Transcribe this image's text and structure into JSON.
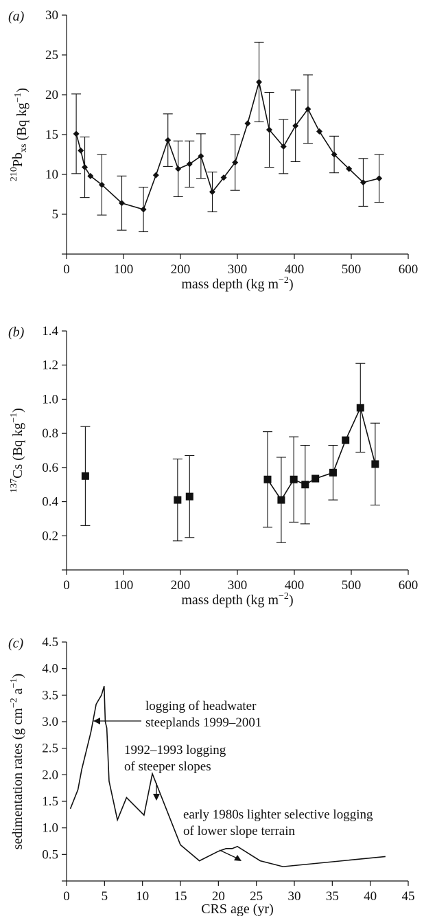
{
  "chart_data": [
    {
      "panel": "(a)",
      "type": "line",
      "xlabel": "mass depth (kg m−2)",
      "xlim": [
        0,
        600
      ],
      "ylim": [
        0,
        30
      ],
      "xticks": [
        "0",
        "100",
        "200",
        "300",
        "400",
        "500",
        "600"
      ],
      "yticks": [
        "5",
        "10",
        "15",
        "20",
        "25",
        "30"
      ],
      "ylabel": {
        "pre": "210",
        "base": "Pb",
        "sub": "xs",
        "mid": " (Bq kg",
        "sup": "−1",
        "post": ")"
      },
      "marker": "diamond",
      "points": [
        {
          "x": 17,
          "y": 15.1,
          "err": 5.0
        },
        {
          "x": 25,
          "y": 13.0,
          "err": null
        },
        {
          "x": 32,
          "y": 10.9,
          "err": 3.8
        },
        {
          "x": 42,
          "y": 9.8,
          "err": null
        },
        {
          "x": 62,
          "y": 8.7,
          "err": 3.8
        },
        {
          "x": 97,
          "y": 6.4,
          "err": 3.4
        },
        {
          "x": 135,
          "y": 5.6,
          "err": 2.8
        },
        {
          "x": 157,
          "y": 9.9,
          "err": null
        },
        {
          "x": 178,
          "y": 14.3,
          "err": 3.3
        },
        {
          "x": 196,
          "y": 10.7,
          "err": 3.5
        },
        {
          "x": 216,
          "y": 11.3,
          "err": 2.9
        },
        {
          "x": 236,
          "y": 12.3,
          "err": 2.8
        },
        {
          "x": 256,
          "y": 7.8,
          "err": 2.5
        },
        {
          "x": 276,
          "y": 9.6,
          "err": null
        },
        {
          "x": 296,
          "y": 11.5,
          "err": 3.5
        },
        {
          "x": 318,
          "y": 16.4,
          "err": null
        },
        {
          "x": 338,
          "y": 21.6,
          "err": 5.0
        },
        {
          "x": 356,
          "y": 15.6,
          "err": 4.7
        },
        {
          "x": 381,
          "y": 13.5,
          "err": 3.4
        },
        {
          "x": 402,
          "y": 16.1,
          "err": 4.5
        },
        {
          "x": 424,
          "y": 18.2,
          "err": 4.3
        },
        {
          "x": 444,
          "y": 15.4,
          "err": null
        },
        {
          "x": 470,
          "y": 12.5,
          "err": 2.3
        },
        {
          "x": 496,
          "y": 10.7,
          "err": null
        },
        {
          "x": 521,
          "y": 9.0,
          "err": 3.0
        },
        {
          "x": 549,
          "y": 9.5,
          "err": 3.0
        }
      ]
    },
    {
      "panel": "(b)",
      "type": "line",
      "xlabel": "mass depth (kg m−2)",
      "xlim": [
        0,
        600
      ],
      "ylim": [
        0,
        1.4
      ],
      "xticks": [
        "0",
        "100",
        "200",
        "300",
        "400",
        "500",
        "600"
      ],
      "yticks": [
        "0.2",
        "0.4",
        "0.6",
        "0.8",
        "1.0",
        "1.2",
        "1.4"
      ],
      "ylabel": {
        "pre": "137",
        "base": "Cs",
        "sub": "",
        "mid": " (Bq kg",
        "sup": "−1",
        "post": ")"
      },
      "marker": "square",
      "connected_from_index": 3,
      "points": [
        {
          "x": 33,
          "y": 0.55,
          "err": 0.29
        },
        {
          "x": 195,
          "y": 0.41,
          "err": 0.24
        },
        {
          "x": 216,
          "y": 0.43,
          "err": 0.24
        },
        {
          "x": 353,
          "y": 0.53,
          "err": 0.28
        },
        {
          "x": 377,
          "y": 0.41,
          "err": 0.25
        },
        {
          "x": 399,
          "y": 0.53,
          "err": 0.25
        },
        {
          "x": 419,
          "y": 0.5,
          "err": 0.23
        },
        {
          "x": 437,
          "y": 0.535,
          "err": null
        },
        {
          "x": 468,
          "y": 0.57,
          "err": 0.16
        },
        {
          "x": 490,
          "y": 0.76,
          "err": null
        },
        {
          "x": 516,
          "y": 0.95,
          "err": 0.26
        },
        {
          "x": 542,
          "y": 0.62,
          "err": 0.24
        }
      ]
    },
    {
      "panel": "(c)",
      "type": "line",
      "xlabel": "CRS age (yr)",
      "xlim": [
        0,
        45
      ],
      "ylim": [
        0,
        4.5
      ],
      "xticks": [
        "0",
        "5",
        "10",
        "15",
        "20",
        "25",
        "30",
        "35",
        "40",
        "45"
      ],
      "yticks": [
        "0.5",
        "1.0",
        "1.5",
        "2.0",
        "2.5",
        "3.0",
        "3.5",
        "4.0",
        "4.5"
      ],
      "ylabel": {
        "pre": "",
        "base": "sedimentation rates (g cm",
        "sub": "",
        "mid": "",
        "sup": "−2",
        "post": " a",
        "sup2": "−1",
        "post2": ")"
      },
      "points": [
        {
          "x": 0.5,
          "y": 1.36
        },
        {
          "x": 1.5,
          "y": 1.72
        },
        {
          "x": 2.0,
          "y": 2.1
        },
        {
          "x": 3.2,
          "y": 2.8
        },
        {
          "x": 3.9,
          "y": 3.33
        },
        {
          "x": 4.6,
          "y": 3.5
        },
        {
          "x": 4.95,
          "y": 3.67
        },
        {
          "x": 5.1,
          "y": 3.0
        },
        {
          "x": 5.3,
          "y": 2.88
        },
        {
          "x": 5.6,
          "y": 1.88
        },
        {
          "x": 6.7,
          "y": 1.15
        },
        {
          "x": 7.9,
          "y": 1.57
        },
        {
          "x": 10.2,
          "y": 1.24
        },
        {
          "x": 11.3,
          "y": 2.02
        },
        {
          "x": 15.0,
          "y": 0.68
        },
        {
          "x": 17.5,
          "y": 0.38
        },
        {
          "x": 20.0,
          "y": 0.56
        },
        {
          "x": 21.0,
          "y": 0.61
        },
        {
          "x": 21.8,
          "y": 0.61
        },
        {
          "x": 22.5,
          "y": 0.65
        },
        {
          "x": 25.5,
          "y": 0.38
        },
        {
          "x": 28.5,
          "y": 0.27
        },
        {
          "x": 42.0,
          "y": 0.46
        }
      ],
      "annotations": [
        {
          "lines": [
            "logging of headwater",
            "steeplands 1999–2001"
          ]
        },
        {
          "lines": [
            "1992–1993 logging",
            "of steeper slopes"
          ]
        },
        {
          "lines": [
            "early 1980s lighter selective logging",
            "of lower slope terrain"
          ]
        }
      ]
    }
  ]
}
